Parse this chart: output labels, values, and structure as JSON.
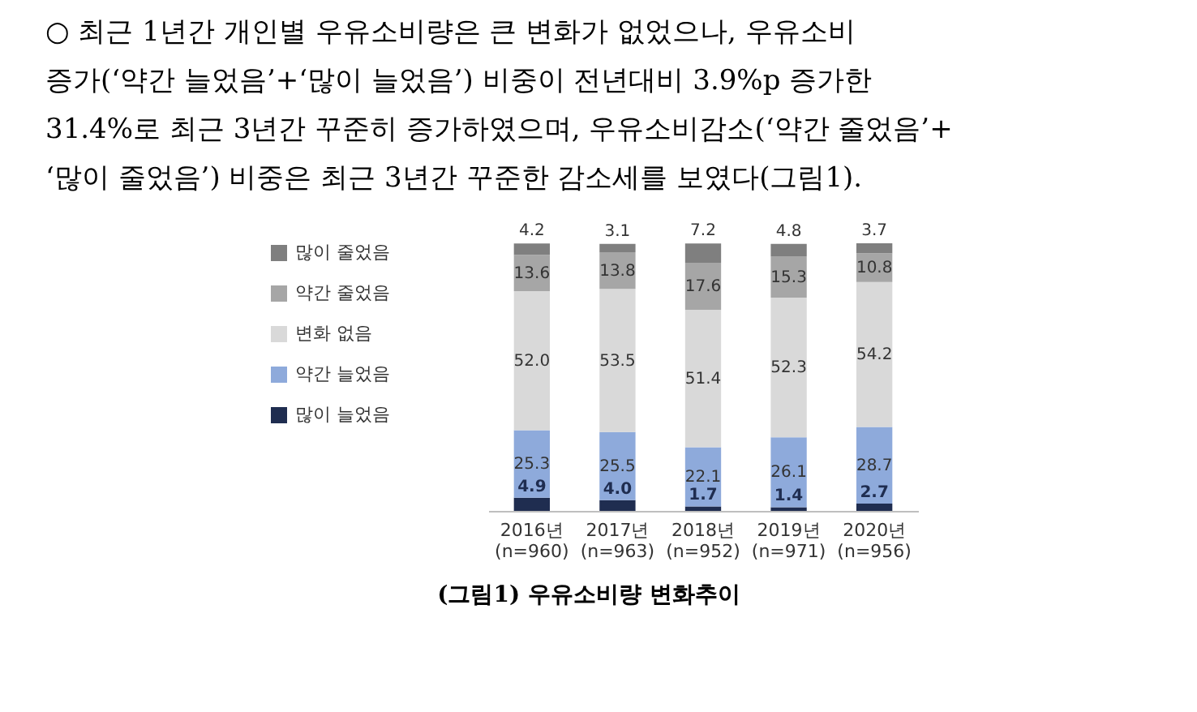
{
  "chart_data": {
    "type": "bar",
    "stacked": true,
    "data_labels": true,
    "legend": "left",
    "grid": false,
    "title": "(그림1) 우유소비량 변화추이",
    "annotations": [
      "○ 최근 1년간 개인별 우유소비량은 큰 변화가 없었으나, 우유소비",
      "증가(‘약간 늘었음’+‘많이 늘었음’) 비중이 전년대비 3.9%p 증가한",
      "31.4%로 최근 3년간 꾸준히 증가하였으며, 우유소비감소(‘약간 줄었음’+",
      "‘많이 줄었음’) 비중은 최근 3년간 꾸준한 감소세를 보였다(그림1)."
    ],
    "categories": [
      "2016년\n(n=960)",
      "2017년\n(n=963)",
      "2018년\n(n=952)",
      "2019년\n(n=971)",
      "2020년\n(n=956)"
    ],
    "series": [
      {
        "name": "많이 늘었음",
        "color": "#1f2d50",
        "values": [
          4.9,
          4.0,
          1.7,
          1.4,
          2.7
        ],
        "value_labels": [
          "4.9",
          "4.0",
          "1.7",
          "1.4",
          "2.7"
        ]
      },
      {
        "name": "약간 늘었음",
        "color": "#8eaadb",
        "values": [
          25.3,
          25.5,
          22.1,
          26.1,
          28.7
        ]
      },
      {
        "name": "변화 없음",
        "color": "#d9d9d9",
        "values": [
          52.0,
          53.5,
          51.4,
          52.3,
          54.2
        ],
        "value_labels": [
          "52.0",
          "53.5",
          "51.4",
          "52.3",
          "54.2"
        ]
      },
      {
        "name": "약간 줄었음",
        "color": "#a6a6a6",
        "values": [
          13.6,
          13.8,
          17.6,
          15.3,
          10.8
        ]
      },
      {
        "name": "많이 줄었음",
        "color": "#7f7f7f",
        "values": [
          4.2,
          3.1,
          7.2,
          4.8,
          3.7
        ]
      }
    ]
  }
}
